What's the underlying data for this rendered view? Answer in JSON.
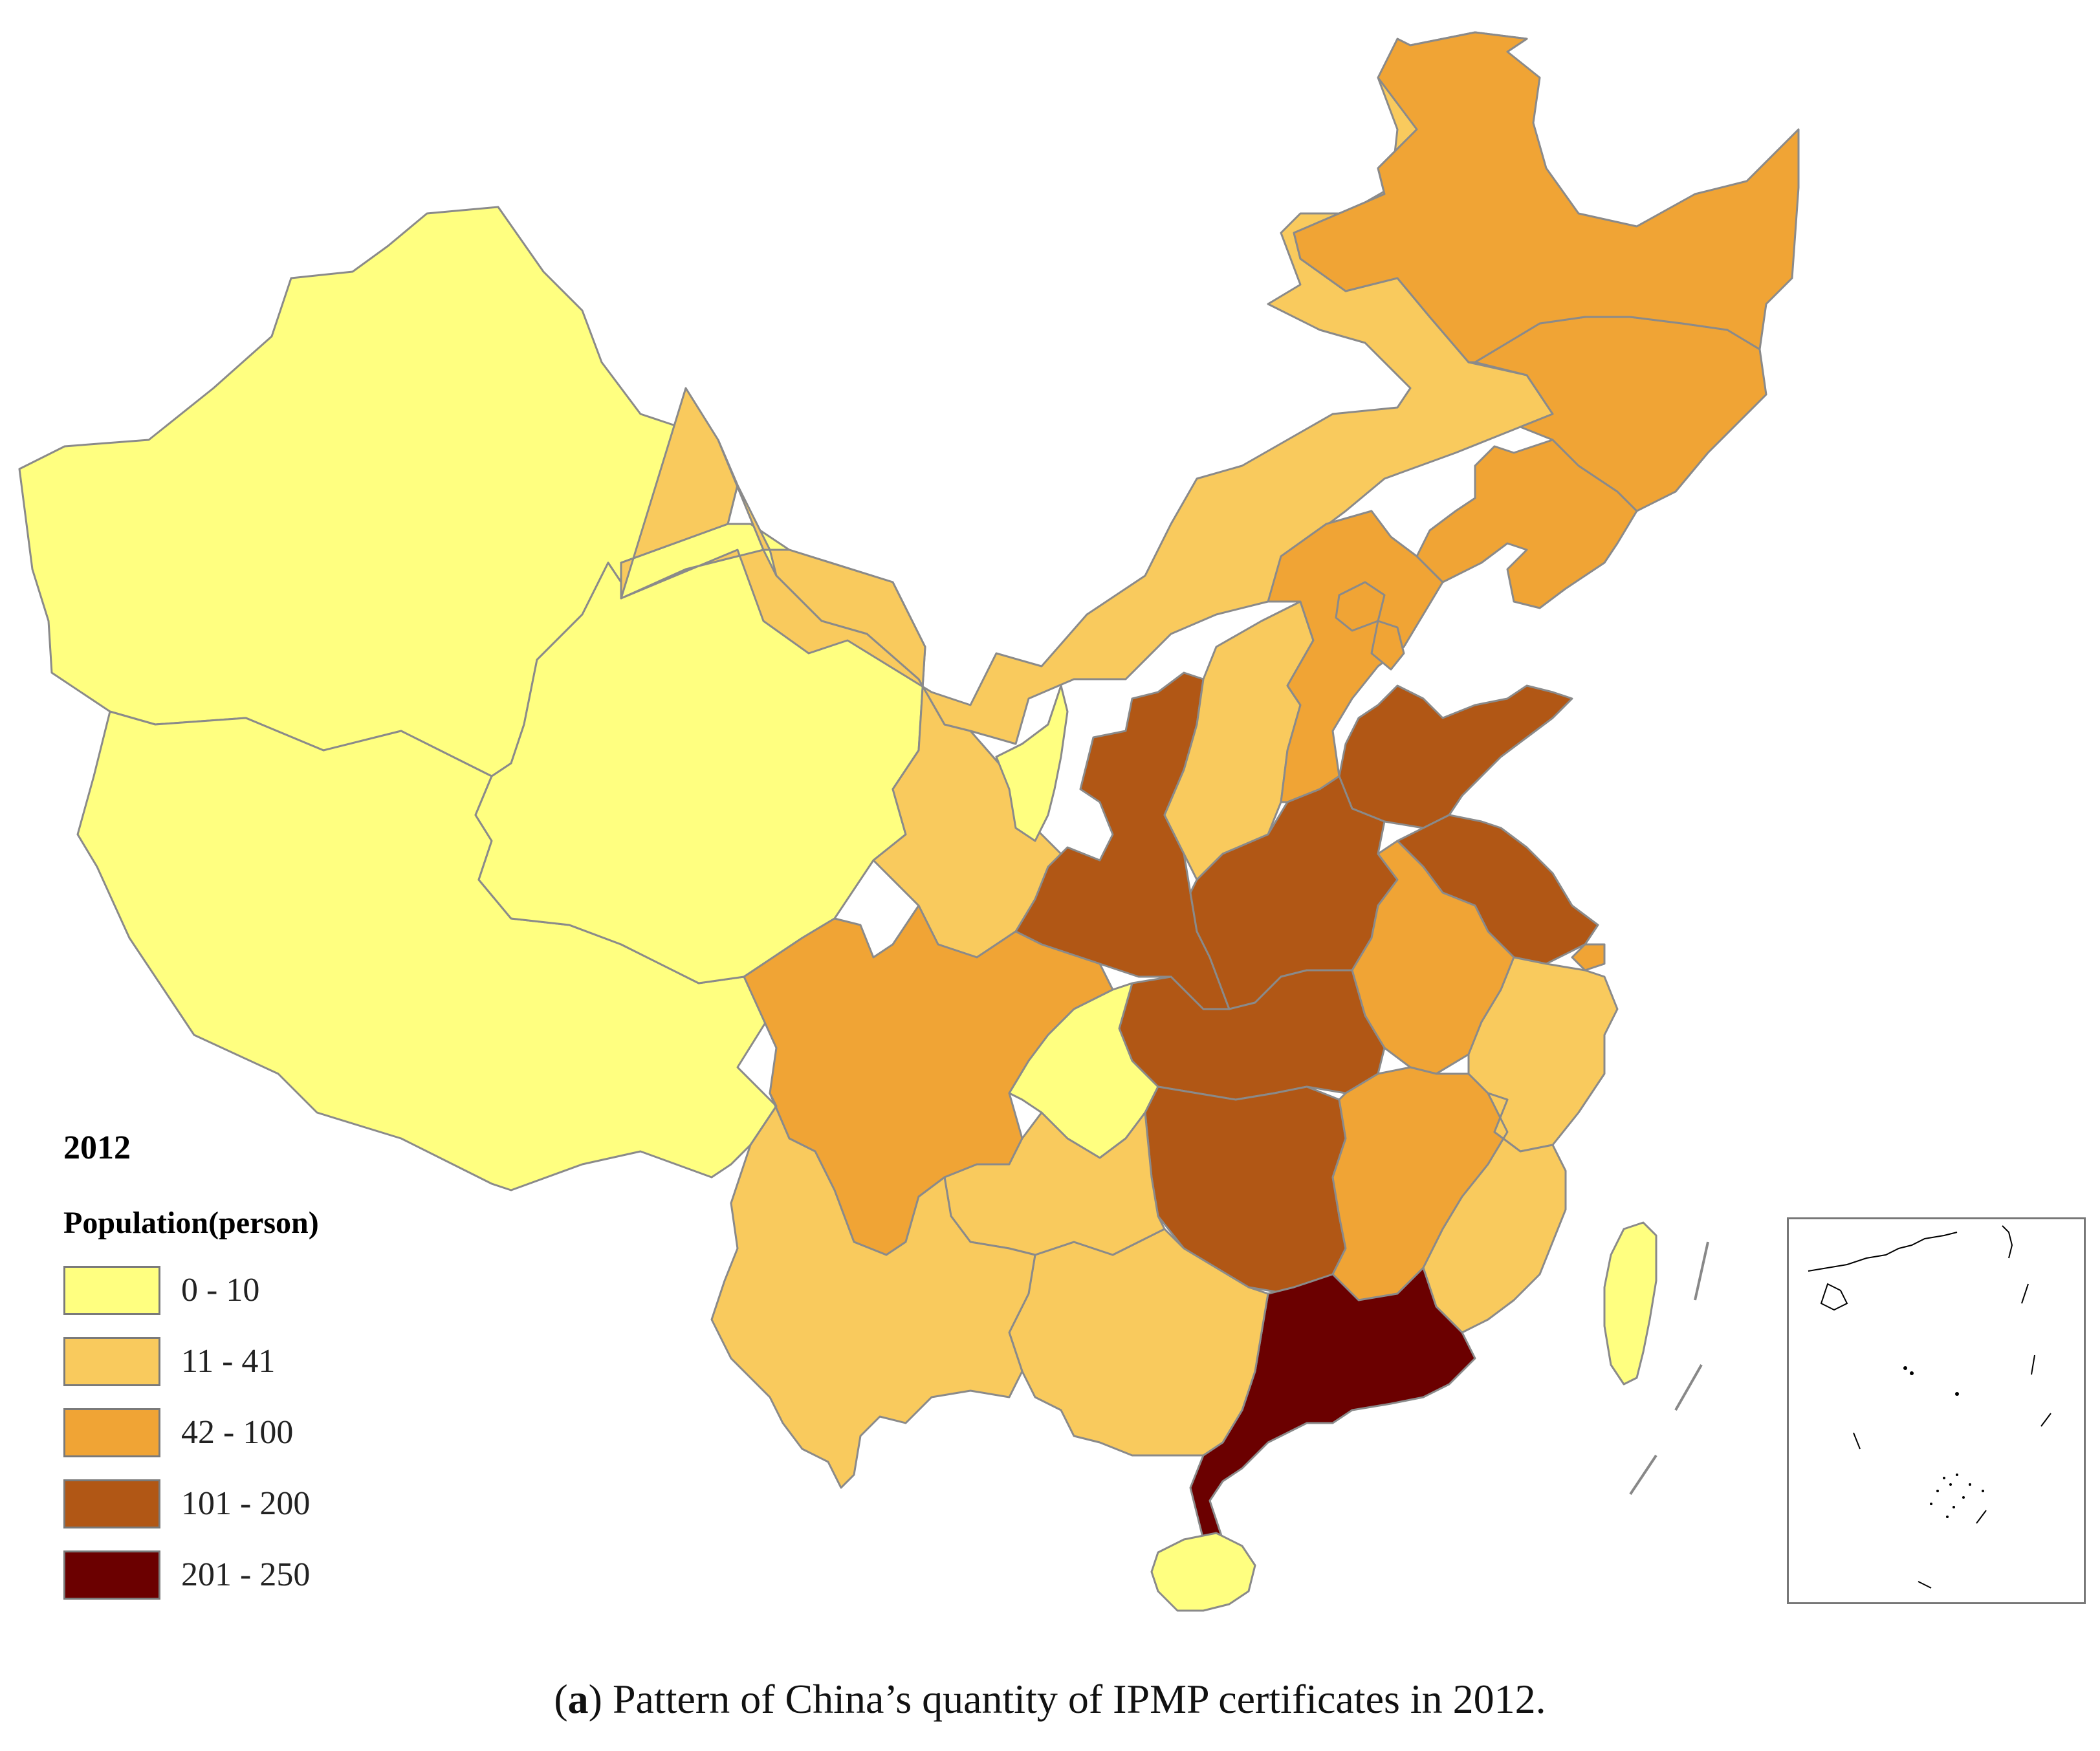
{
  "legend": {
    "year": "2012",
    "title": "Population(person)",
    "classes": [
      {
        "label": "0 - 10",
        "color": "#ffff80"
      },
      {
        "label": "11 - 41",
        "color": "#f9ca5d"
      },
      {
        "label": "42 - 100",
        "color": "#f0a435"
      },
      {
        "label": "101 - 200",
        "color": "#b15715"
      },
      {
        "label": "201 - 250",
        "color": "#6b0000"
      }
    ]
  },
  "caption": {
    "prefix": "(",
    "letter": "a",
    "text": ") Pattern of China’s quantity of IPMP certificates in 2012."
  },
  "map": {
    "provinces": [
      {
        "name": "Xinjiang",
        "class": 0
      },
      {
        "name": "Tibet",
        "class": 0
      },
      {
        "name": "Qinghai",
        "class": 0
      },
      {
        "name": "Gansu",
        "class": 1
      },
      {
        "name": "Inner Mongolia",
        "class": 1
      },
      {
        "name": "Ningxia",
        "class": 0
      },
      {
        "name": "Shaanxi",
        "class": 3
      },
      {
        "name": "Shanxi",
        "class": 1
      },
      {
        "name": "Hebei",
        "class": 2
      },
      {
        "name": "Beijing",
        "class": 2
      },
      {
        "name": "Tianjin",
        "class": 2
      },
      {
        "name": "Liaoning",
        "class": 2
      },
      {
        "name": "Jilin",
        "class": 2
      },
      {
        "name": "Heilongjiang",
        "class": 2
      },
      {
        "name": "Shandong",
        "class": 3
      },
      {
        "name": "Henan",
        "class": 3
      },
      {
        "name": "Jiangsu",
        "class": 3
      },
      {
        "name": "Shanghai",
        "class": 2
      },
      {
        "name": "Anhui",
        "class": 2
      },
      {
        "name": "Hubei",
        "class": 3
      },
      {
        "name": "Sichuan",
        "class": 2
      },
      {
        "name": "Chongqing",
        "class": 0
      },
      {
        "name": "Hunan",
        "class": 3
      },
      {
        "name": "Jiangxi",
        "class": 2
      },
      {
        "name": "Zhejiang",
        "class": 1
      },
      {
        "name": "Fujian",
        "class": 1
      },
      {
        "name": "Guangdong",
        "class": 4
      },
      {
        "name": "Guangxi",
        "class": 1
      },
      {
        "name": "Guizhou",
        "class": 1
      },
      {
        "name": "Yunnan",
        "class": 1
      },
      {
        "name": "Hainan",
        "class": 0
      },
      {
        "name": "Taiwan",
        "class": 0
      }
    ]
  }
}
